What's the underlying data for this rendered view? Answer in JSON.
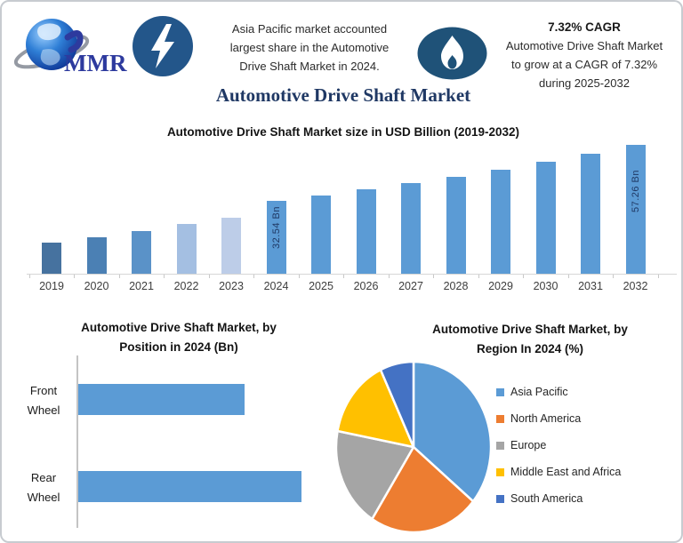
{
  "header": {
    "logo_text": "MMR",
    "left_note": {
      "lines": [
        "Asia Pacific market accounted",
        "largest share in the Automotive",
        "Drive Shaft Market in 2024."
      ]
    },
    "right_note": {
      "title": "7.32% CAGR",
      "lines": [
        "Automotive Drive Shaft Market",
        "to grow at a CAGR of 7.32%",
        "during 2025-2032"
      ]
    }
  },
  "page_title": "Automotive Drive Shaft Market",
  "colors": {
    "accent_blue": "#5B9BD5",
    "dark_navy_text": "#1F3864",
    "bolt_circle": "#23568A",
    "flame_circle": "#1F5278"
  },
  "chart_data": [
    {
      "type": "bar",
      "title": "Automotive Drive Shaft Market size in USD Billion (2019-2032)",
      "categories": [
        "2019",
        "2020",
        "2021",
        "2022",
        "2023",
        "2024",
        "2025",
        "2026",
        "2027",
        "2028",
        "2029",
        "2030",
        "2031",
        "2032"
      ],
      "values": [
        13.8,
        16.2,
        19.0,
        22.1,
        24.9,
        32.54,
        34.92,
        37.48,
        40.22,
        43.16,
        46.32,
        49.71,
        53.35,
        57.26
      ],
      "bar_colors": [
        "#46729F",
        "#4B80B4",
        "#5A92C8",
        "#A4BFE2",
        "#BDCDE8",
        "#5B9BD5",
        "#5B9BD5",
        "#5B9BD5",
        "#5B9BD5",
        "#5B9BD5",
        "#5B9BD5",
        "#5B9BD5",
        "#5B9BD5",
        "#5B9BD5"
      ],
      "data_labels": {
        "5": "32.54 Bn",
        "13": "57.26 Bn"
      },
      "ylabel": "USD Billion",
      "ylim": [
        0,
        57.26
      ],
      "grid": false,
      "note": "only 2024 and 2032 bars carry data labels; 2019-2023 values estimated from bar heights"
    },
    {
      "type": "bar",
      "orientation": "horizontal",
      "title_line1": "Automotive Drive Shaft Market, by",
      "title_line2": "Position in 2024 (Bn)",
      "categories": [
        "Front Wheel",
        "Rear Wheel"
      ],
      "values_relative": [
        0.745,
        1.0
      ],
      "value_scale": "relative bar lengths (axis unlabeled in source)",
      "bar_color": "#5B9BD5",
      "grid": false
    },
    {
      "type": "pie",
      "title_line1": "Automotive Drive Shaft Market, by",
      "title_line2": "Region In 2024 (%)",
      "labels": [
        "Asia Pacific",
        "North America",
        "Europe",
        "Middle East and Africa",
        "South America"
      ],
      "values": [
        36,
        23,
        19,
        15,
        7
      ],
      "slice_colors": [
        "#5B9BD5",
        "#ED7D31",
        "#A5A5A5",
        "#FFC000",
        "#4472C4"
      ],
      "start_angle_deg": 0,
      "direction": "clockwise",
      "legend_position": "right"
    }
  ],
  "position_chart_labels": {
    "front_line1": "Front",
    "front_line2": "Wheel",
    "rear_line1": "Rear",
    "rear_line2": "Wheel"
  }
}
